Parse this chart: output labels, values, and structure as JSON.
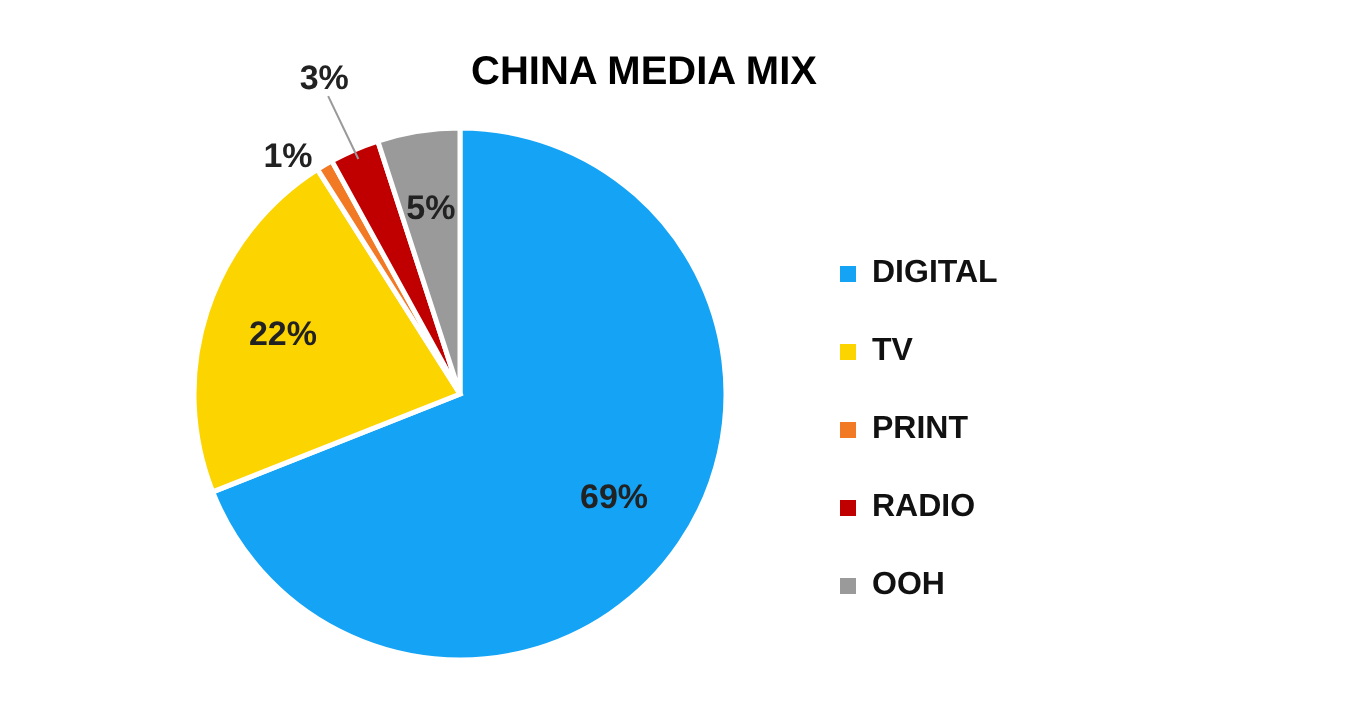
{
  "chart_data": {
    "type": "pie",
    "title": "CHINA MEDIA MIX",
    "categories": [
      "DIGITAL",
      "TV",
      "PRINT",
      "RADIO",
      "OOH"
    ],
    "values": [
      69,
      22,
      1,
      3,
      5
    ],
    "colors": [
      "#14a3f5",
      "#fcd400",
      "#f37a24",
      "#c00000",
      "#9a9a9a"
    ],
    "value_labels": [
      "69%",
      "22%",
      "1%",
      "3%",
      "5%"
    ],
    "legend": "right"
  }
}
